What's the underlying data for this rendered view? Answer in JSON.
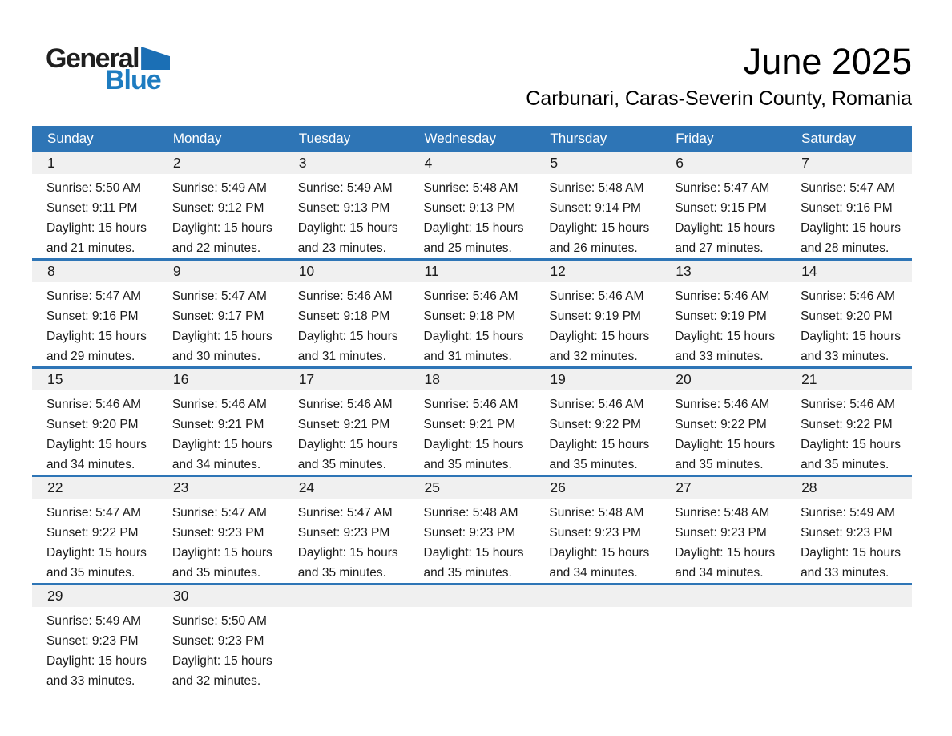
{
  "header": {
    "title": "June 2025",
    "subtitle": "Carbunari, Caras-Severin County, Romania"
  },
  "logo": {
    "word1": "General",
    "word2": "Blue"
  },
  "colors": {
    "accent_blue": "#2E75B6",
    "date_band_bg": "#F0F0F0",
    "logo_triangle_blue": "#1B6FB5",
    "logo_text_blue": "#1E7CC0",
    "header_text": "#FFFFFF",
    "body_text": "#1B1B1B"
  },
  "calendar": {
    "weekdays": [
      "Sunday",
      "Monday",
      "Tuesday",
      "Wednesday",
      "Thursday",
      "Friday",
      "Saturday"
    ],
    "weeks": [
      [
        {
          "date": "1",
          "sunrise": "Sunrise: 5:50 AM",
          "sunset": "Sunset: 9:11 PM",
          "daylight1": "Daylight: 15 hours",
          "daylight2": "and 21 minutes."
        },
        {
          "date": "2",
          "sunrise": "Sunrise: 5:49 AM",
          "sunset": "Sunset: 9:12 PM",
          "daylight1": "Daylight: 15 hours",
          "daylight2": "and 22 minutes."
        },
        {
          "date": "3",
          "sunrise": "Sunrise: 5:49 AM",
          "sunset": "Sunset: 9:13 PM",
          "daylight1": "Daylight: 15 hours",
          "daylight2": "and 23 minutes."
        },
        {
          "date": "4",
          "sunrise": "Sunrise: 5:48 AM",
          "sunset": "Sunset: 9:13 PM",
          "daylight1": "Daylight: 15 hours",
          "daylight2": "and 25 minutes."
        },
        {
          "date": "5",
          "sunrise": "Sunrise: 5:48 AM",
          "sunset": "Sunset: 9:14 PM",
          "daylight1": "Daylight: 15 hours",
          "daylight2": "and 26 minutes."
        },
        {
          "date": "6",
          "sunrise": "Sunrise: 5:47 AM",
          "sunset": "Sunset: 9:15 PM",
          "daylight1": "Daylight: 15 hours",
          "daylight2": "and 27 minutes."
        },
        {
          "date": "7",
          "sunrise": "Sunrise: 5:47 AM",
          "sunset": "Sunset: 9:16 PM",
          "daylight1": "Daylight: 15 hours",
          "daylight2": "and 28 minutes."
        }
      ],
      [
        {
          "date": "8",
          "sunrise": "Sunrise: 5:47 AM",
          "sunset": "Sunset: 9:16 PM",
          "daylight1": "Daylight: 15 hours",
          "daylight2": "and 29 minutes."
        },
        {
          "date": "9",
          "sunrise": "Sunrise: 5:47 AM",
          "sunset": "Sunset: 9:17 PM",
          "daylight1": "Daylight: 15 hours",
          "daylight2": "and 30 minutes."
        },
        {
          "date": "10",
          "sunrise": "Sunrise: 5:46 AM",
          "sunset": "Sunset: 9:18 PM",
          "daylight1": "Daylight: 15 hours",
          "daylight2": "and 31 minutes."
        },
        {
          "date": "11",
          "sunrise": "Sunrise: 5:46 AM",
          "sunset": "Sunset: 9:18 PM",
          "daylight1": "Daylight: 15 hours",
          "daylight2": "and 31 minutes."
        },
        {
          "date": "12",
          "sunrise": "Sunrise: 5:46 AM",
          "sunset": "Sunset: 9:19 PM",
          "daylight1": "Daylight: 15 hours",
          "daylight2": "and 32 minutes."
        },
        {
          "date": "13",
          "sunrise": "Sunrise: 5:46 AM",
          "sunset": "Sunset: 9:19 PM",
          "daylight1": "Daylight: 15 hours",
          "daylight2": "and 33 minutes."
        },
        {
          "date": "14",
          "sunrise": "Sunrise: 5:46 AM",
          "sunset": "Sunset: 9:20 PM",
          "daylight1": "Daylight: 15 hours",
          "daylight2": "and 33 minutes."
        }
      ],
      [
        {
          "date": "15",
          "sunrise": "Sunrise: 5:46 AM",
          "sunset": "Sunset: 9:20 PM",
          "daylight1": "Daylight: 15 hours",
          "daylight2": "and 34 minutes."
        },
        {
          "date": "16",
          "sunrise": "Sunrise: 5:46 AM",
          "sunset": "Sunset: 9:21 PM",
          "daylight1": "Daylight: 15 hours",
          "daylight2": "and 34 minutes."
        },
        {
          "date": "17",
          "sunrise": "Sunrise: 5:46 AM",
          "sunset": "Sunset: 9:21 PM",
          "daylight1": "Daylight: 15 hours",
          "daylight2": "and 35 minutes."
        },
        {
          "date": "18",
          "sunrise": "Sunrise: 5:46 AM",
          "sunset": "Sunset: 9:21 PM",
          "daylight1": "Daylight: 15 hours",
          "daylight2": "and 35 minutes."
        },
        {
          "date": "19",
          "sunrise": "Sunrise: 5:46 AM",
          "sunset": "Sunset: 9:22 PM",
          "daylight1": "Daylight: 15 hours",
          "daylight2": "and 35 minutes."
        },
        {
          "date": "20",
          "sunrise": "Sunrise: 5:46 AM",
          "sunset": "Sunset: 9:22 PM",
          "daylight1": "Daylight: 15 hours",
          "daylight2": "and 35 minutes."
        },
        {
          "date": "21",
          "sunrise": "Sunrise: 5:46 AM",
          "sunset": "Sunset: 9:22 PM",
          "daylight1": "Daylight: 15 hours",
          "daylight2": "and 35 minutes."
        }
      ],
      [
        {
          "date": "22",
          "sunrise": "Sunrise: 5:47 AM",
          "sunset": "Sunset: 9:22 PM",
          "daylight1": "Daylight: 15 hours",
          "daylight2": "and 35 minutes."
        },
        {
          "date": "23",
          "sunrise": "Sunrise: 5:47 AM",
          "sunset": "Sunset: 9:23 PM",
          "daylight1": "Daylight: 15 hours",
          "daylight2": "and 35 minutes."
        },
        {
          "date": "24",
          "sunrise": "Sunrise: 5:47 AM",
          "sunset": "Sunset: 9:23 PM",
          "daylight1": "Daylight: 15 hours",
          "daylight2": "and 35 minutes."
        },
        {
          "date": "25",
          "sunrise": "Sunrise: 5:48 AM",
          "sunset": "Sunset: 9:23 PM",
          "daylight1": "Daylight: 15 hours",
          "daylight2": "and 35 minutes."
        },
        {
          "date": "26",
          "sunrise": "Sunrise: 5:48 AM",
          "sunset": "Sunset: 9:23 PM",
          "daylight1": "Daylight: 15 hours",
          "daylight2": "and 34 minutes."
        },
        {
          "date": "27",
          "sunrise": "Sunrise: 5:48 AM",
          "sunset": "Sunset: 9:23 PM",
          "daylight1": "Daylight: 15 hours",
          "daylight2": "and 34 minutes."
        },
        {
          "date": "28",
          "sunrise": "Sunrise: 5:49 AM",
          "sunset": "Sunset: 9:23 PM",
          "daylight1": "Daylight: 15 hours",
          "daylight2": "and 33 minutes."
        }
      ],
      [
        {
          "date": "29",
          "sunrise": "Sunrise: 5:49 AM",
          "sunset": "Sunset: 9:23 PM",
          "daylight1": "Daylight: 15 hours",
          "daylight2": "and 33 minutes."
        },
        {
          "date": "30",
          "sunrise": "Sunrise: 5:50 AM",
          "sunset": "Sunset: 9:23 PM",
          "daylight1": "Daylight: 15 hours",
          "daylight2": "and 32 minutes."
        },
        null,
        null,
        null,
        null,
        null
      ]
    ]
  }
}
